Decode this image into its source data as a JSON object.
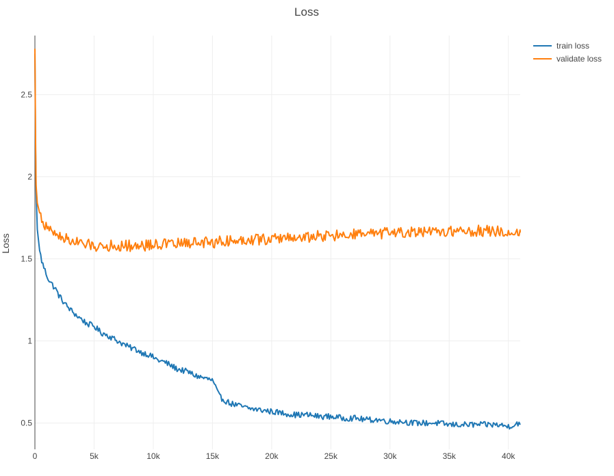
{
  "chart_data": {
    "type": "line",
    "title": "Loss",
    "xlabel": "",
    "ylabel": "Loss",
    "xlim": [
      0,
      41000
    ],
    "ylim": [
      0.34,
      2.86
    ],
    "x_ticks": [
      0,
      5000,
      10000,
      15000,
      20000,
      25000,
      30000,
      35000,
      40000
    ],
    "x_tick_labels": [
      "0",
      "5k",
      "10k",
      "15k",
      "20k",
      "25k",
      "30k",
      "35k",
      "40k"
    ],
    "y_ticks": [
      0.5,
      1,
      1.5,
      2,
      2.5
    ],
    "y_tick_labels": [
      "0.5",
      "1",
      "1.5",
      "2",
      "2.5"
    ],
    "grid": true,
    "legend_position": "top-right",
    "series": [
      {
        "name": "train loss",
        "color": "#1f77b4",
        "x": [
          0,
          50,
          100,
          200,
          400,
          600,
          800,
          1000,
          1200,
          1500,
          1800,
          2000,
          2300,
          2600,
          3000,
          3300,
          3600,
          4000,
          4300,
          4600,
          5000,
          5300,
          5600,
          6000,
          6500,
          7000,
          7500,
          8000,
          8500,
          9000,
          9500,
          10000,
          10500,
          11000,
          11500,
          12000,
          12500,
          13000,
          13500,
          14000,
          14500,
          15000,
          15300,
          15600,
          16000,
          16500,
          17000,
          17500,
          18000,
          19000,
          20000,
          21000,
          22000,
          23000,
          24000,
          25000,
          26000,
          27000,
          28000,
          29000,
          30000,
          31000,
          32000,
          33000,
          34000,
          35000,
          36000,
          37000,
          38000,
          39000,
          40000,
          40500,
          40800,
          41000
        ],
        "y": [
          2.75,
          2.2,
          1.92,
          1.68,
          1.55,
          1.48,
          1.44,
          1.4,
          1.37,
          1.34,
          1.31,
          1.28,
          1.25,
          1.22,
          1.19,
          1.17,
          1.15,
          1.13,
          1.11,
          1.1,
          1.09,
          1.07,
          1.05,
          1.04,
          1.02,
          1.0,
          0.98,
          0.96,
          0.95,
          0.93,
          0.92,
          0.9,
          0.88,
          0.87,
          0.85,
          0.83,
          0.82,
          0.81,
          0.79,
          0.78,
          0.77,
          0.76,
          0.71,
          0.66,
          0.64,
          0.62,
          0.61,
          0.6,
          0.59,
          0.58,
          0.57,
          0.56,
          0.55,
          0.55,
          0.54,
          0.54,
          0.53,
          0.53,
          0.52,
          0.52,
          0.51,
          0.51,
          0.5,
          0.5,
          0.5,
          0.49,
          0.49,
          0.49,
          0.49,
          0.49,
          0.48,
          0.49,
          0.5,
          0.49
        ]
      },
      {
        "name": "validate loss",
        "color": "#ff7f0e",
        "x": [
          0,
          50,
          100,
          200,
          400,
          600,
          800,
          1000,
          1300,
          1600,
          2000,
          2500,
          3000,
          3500,
          4000,
          5000,
          6000,
          7000,
          8000,
          9000,
          10000,
          11000,
          12000,
          13000,
          14000,
          15000,
          16000,
          17000,
          18000,
          19000,
          20000,
          21000,
          22000,
          23000,
          24000,
          25000,
          26000,
          27000,
          28000,
          29000,
          30000,
          31000,
          32000,
          33000,
          34000,
          35000,
          36000,
          37000,
          38000,
          39000,
          40000,
          41000
        ],
        "y": [
          2.78,
          2.25,
          1.95,
          1.84,
          1.78,
          1.74,
          1.71,
          1.69,
          1.67,
          1.66,
          1.64,
          1.63,
          1.61,
          1.6,
          1.59,
          1.58,
          1.58,
          1.58,
          1.58,
          1.58,
          1.59,
          1.59,
          1.59,
          1.6,
          1.6,
          1.6,
          1.61,
          1.61,
          1.62,
          1.62,
          1.62,
          1.63,
          1.63,
          1.63,
          1.64,
          1.64,
          1.64,
          1.65,
          1.65,
          1.65,
          1.66,
          1.66,
          1.66,
          1.66,
          1.66,
          1.67,
          1.67,
          1.67,
          1.67,
          1.67,
          1.66,
          1.66
        ]
      }
    ]
  }
}
